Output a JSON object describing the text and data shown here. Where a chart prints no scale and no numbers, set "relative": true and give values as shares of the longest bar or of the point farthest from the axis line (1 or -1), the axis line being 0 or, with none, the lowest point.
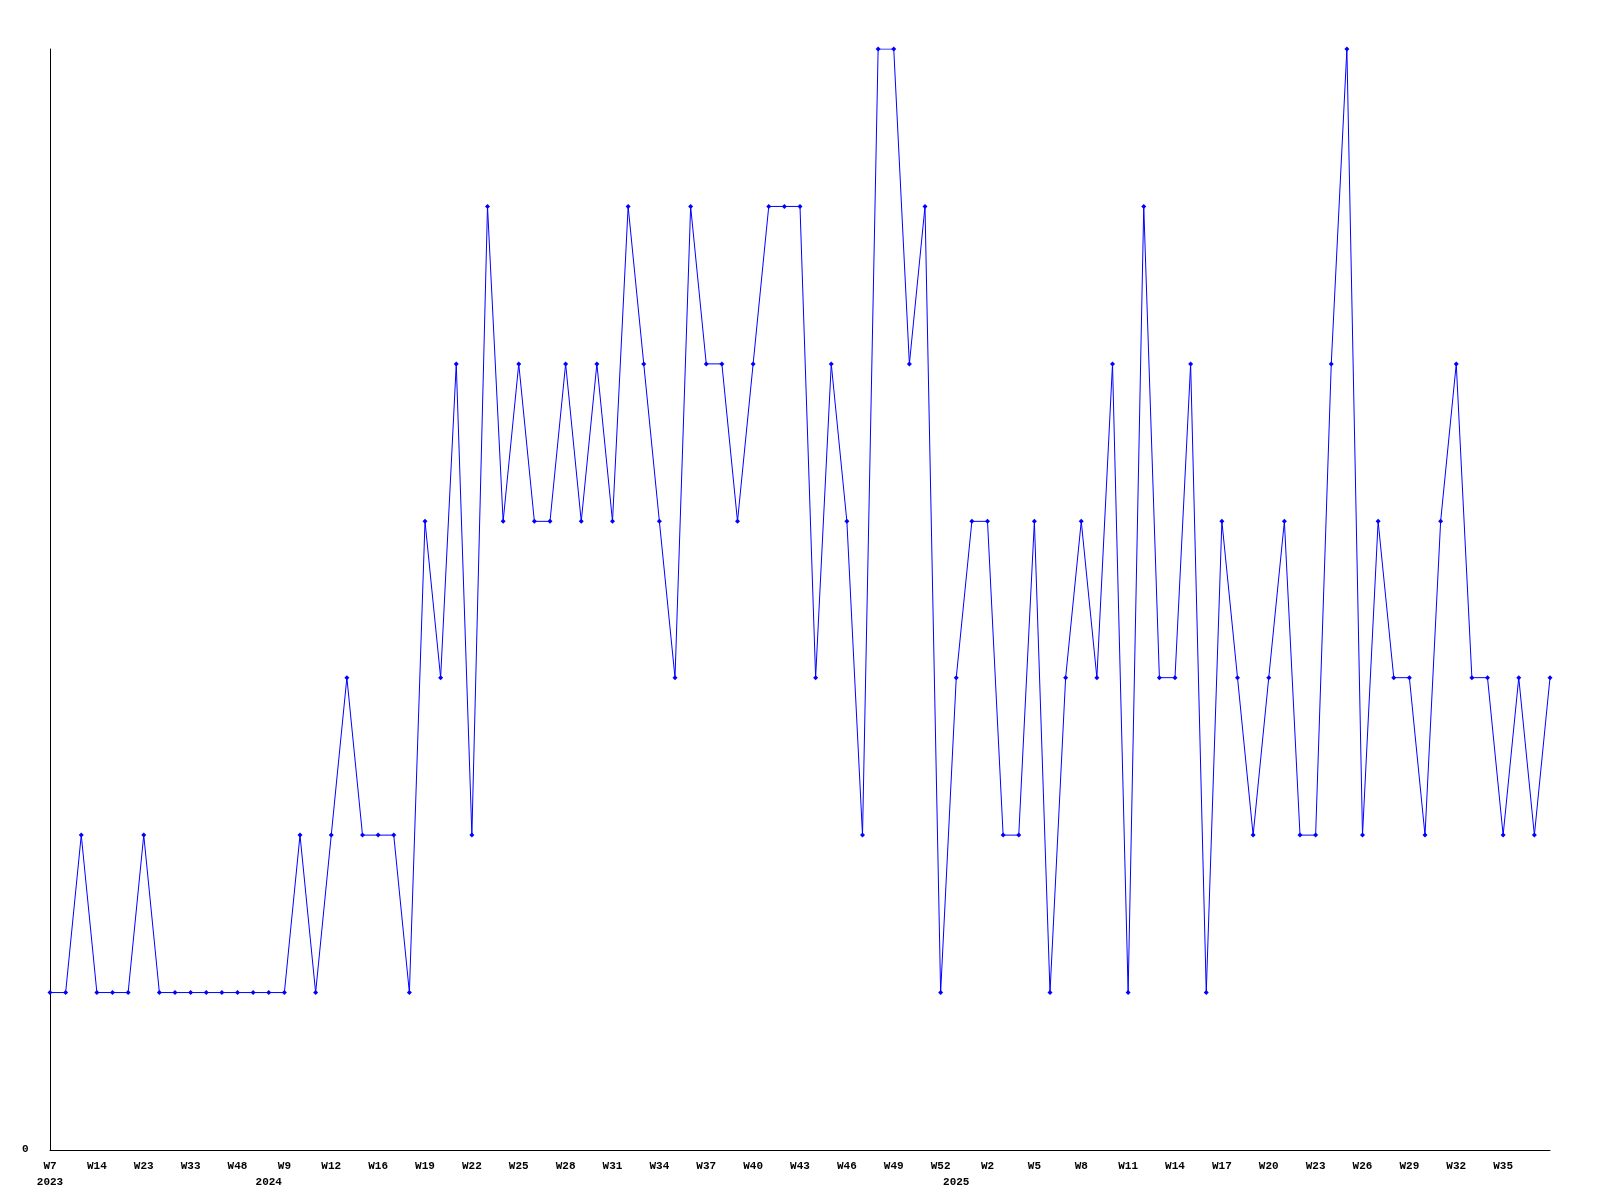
{
  "chart_data": {
    "type": "line",
    "relative": true,
    "annotations": [
      "0"
    ],
    "categories": [
      "W7\n2023",
      null,
      null,
      "W14",
      null,
      null,
      "W23",
      null,
      null,
      "W33",
      null,
      null,
      "W48",
      null,
      "\n2024",
      "W9",
      null,
      null,
      "W12",
      null,
      null,
      "W16",
      null,
      null,
      "W19",
      null,
      null,
      "W22",
      null,
      null,
      "W25",
      null,
      null,
      "W28",
      null,
      null,
      "W31",
      null,
      null,
      "W34",
      null,
      null,
      "W37",
      null,
      null,
      "W40",
      null,
      null,
      "W43",
      null,
      null,
      "W46",
      null,
      null,
      "W49",
      null,
      null,
      "W52",
      "\n2025",
      null,
      "W2",
      null,
      null,
      "W5",
      null,
      null,
      "W8",
      null,
      null,
      "W11",
      null,
      null,
      "W14",
      null,
      null,
      "W17",
      null,
      null,
      "W20",
      null,
      null,
      "W23",
      null,
      null,
      "W26",
      null,
      null,
      "W29",
      null,
      null,
      "W32",
      null,
      null,
      "W35",
      null,
      null,
      null
    ],
    "series": [
      {
        "color": "#0000ff",
        "values": [
          0.143,
          0.143,
          0.286,
          0.143,
          0.143,
          0.143,
          0.286,
          0.143,
          0.143,
          0.143,
          0.143,
          0.143,
          0.143,
          0.143,
          0.143,
          0.143,
          0.286,
          0.143,
          0.286,
          0.429,
          0.286,
          0.286,
          0.286,
          0.143,
          0.571,
          0.429,
          0.714,
          0.286,
          0.857,
          0.571,
          0.714,
          0.571,
          0.571,
          0.714,
          0.571,
          0.714,
          0.571,
          0.857,
          0.714,
          0.571,
          0.429,
          0.857,
          0.714,
          0.714,
          0.571,
          0.714,
          0.857,
          0.857,
          0.857,
          0.429,
          0.714,
          0.571,
          0.286,
          1,
          1,
          0.714,
          0.857,
          0.143,
          0.429,
          0.571,
          0.571,
          0.286,
          0.286,
          0.571,
          0.143,
          0.429,
          0.571,
          0.429,
          0.714,
          0.143,
          0.857,
          0.429,
          0.429,
          0.714,
          0.143,
          0.571,
          0.429,
          0.286,
          0.429,
          0.571,
          0.286,
          0.286,
          0.714,
          1,
          0.286,
          0.571,
          0.429,
          0.429,
          0.286,
          0.571,
          0.714,
          0.429,
          0.429,
          0.286,
          0.429,
          0.286,
          0.429
        ]
      }
    ],
    "marker": "diamond",
    "line_style": "solid",
    "grid": false
  }
}
